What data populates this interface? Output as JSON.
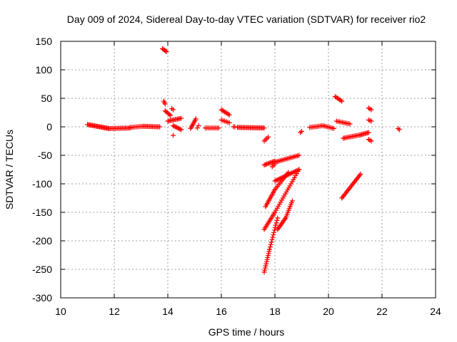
{
  "chart_data": {
    "type": "scatter",
    "title": "Day 009 of 2024, Sidereal Day-to-day VTEC variation (SDTVAR) for receiver rio2",
    "xlabel": "GPS time / hours",
    "ylabel": "SDTVAR / TECUs",
    "xlim": [
      10,
      24
    ],
    "ylim": [
      -300,
      150
    ],
    "x_ticks": [
      10,
      12,
      14,
      16,
      18,
      20,
      22,
      24
    ],
    "y_ticks": [
      150,
      100,
      50,
      0,
      -50,
      -100,
      -150,
      -200,
      -250,
      -300
    ],
    "grid": true,
    "legend": "none",
    "marker_color": "#ff0000",
    "marker": "plus",
    "segments": [
      {
        "from": [
          11.0,
          4
        ],
        "to": [
          11.8,
          -3
        ],
        "n": 22
      },
      {
        "from": [
          11.8,
          -3
        ],
        "to": [
          12.6,
          -2
        ],
        "n": 18
      },
      {
        "from": [
          12.6,
          -1
        ],
        "to": [
          13.1,
          1
        ],
        "n": 10
      },
      {
        "from": [
          13.1,
          1
        ],
        "to": [
          13.7,
          0
        ],
        "n": 14
      },
      {
        "from": [
          13.8,
          137
        ],
        "to": [
          13.95,
          132
        ],
        "n": 5
      },
      {
        "from": [
          13.85,
          45
        ],
        "to": [
          13.9,
          40
        ],
        "n": 3
      },
      {
        "from": [
          13.9,
          28
        ],
        "to": [
          14.1,
          20
        ],
        "n": 6
      },
      {
        "from": [
          14.15,
          32
        ],
        "to": [
          14.2,
          30
        ],
        "n": 2
      },
      {
        "from": [
          14.0,
          10
        ],
        "to": [
          14.5,
          15
        ],
        "n": 12
      },
      {
        "from": [
          14.2,
          2
        ],
        "to": [
          14.5,
          -5
        ],
        "n": 8
      },
      {
        "from": [
          14.2,
          -15
        ],
        "to": [
          14.25,
          -15
        ],
        "n": 1
      },
      {
        "from": [
          14.85,
          -3
        ],
        "to": [
          15.05,
          14
        ],
        "n": 8
      },
      {
        "from": [
          15.1,
          -2
        ],
        "to": [
          15.15,
          2
        ],
        "n": 2
      },
      {
        "from": [
          15.4,
          -2
        ],
        "to": [
          15.9,
          -2
        ],
        "n": 10
      },
      {
        "from": [
          16.0,
          30
        ],
        "to": [
          16.3,
          21
        ],
        "n": 8
      },
      {
        "from": [
          16.0,
          12
        ],
        "to": [
          16.3,
          7
        ],
        "n": 6
      },
      {
        "from": [
          16.45,
          0
        ],
        "to": [
          16.5,
          0
        ],
        "n": 2
      },
      {
        "from": [
          16.6,
          -1
        ],
        "to": [
          17.6,
          -2
        ],
        "n": 24
      },
      {
        "from": [
          17.6,
          -25
        ],
        "to": [
          17.75,
          -18
        ],
        "n": 4
      },
      {
        "from": [
          17.6,
          -67
        ],
        "to": [
          18.0,
          -60
        ],
        "n": 10
      },
      {
        "from": [
          18.0,
          -62
        ],
        "to": [
          18.9,
          -50
        ],
        "n": 18
      },
      {
        "from": [
          17.9,
          -70
        ],
        "to": [
          18.0,
          -65
        ],
        "n": 3
      },
      {
        "from": [
          17.65,
          -140
        ],
        "to": [
          18.0,
          -110
        ],
        "n": 12
      },
      {
        "from": [
          18.0,
          -110
        ],
        "to": [
          18.5,
          -80
        ],
        "n": 12
      },
      {
        "from": [
          17.6,
          -180
        ],
        "to": [
          18.0,
          -150
        ],
        "n": 12
      },
      {
        "from": [
          18.0,
          -150
        ],
        "to": [
          18.9,
          -75
        ],
        "n": 22
      },
      {
        "from": [
          17.6,
          -255
        ],
        "to": [
          17.8,
          -215
        ],
        "n": 12
      },
      {
        "from": [
          17.8,
          -215
        ],
        "to": [
          18.1,
          -160
        ],
        "n": 14
      },
      {
        "from": [
          18.1,
          -180
        ],
        "to": [
          18.4,
          -160
        ],
        "n": 10
      },
      {
        "from": [
          18.4,
          -160
        ],
        "to": [
          18.65,
          -130
        ],
        "n": 10
      },
      {
        "from": [
          18.0,
          -95
        ],
        "to": [
          18.9,
          -75
        ],
        "n": 20
      },
      {
        "from": [
          18.95,
          -10
        ],
        "to": [
          19.0,
          -8
        ],
        "n": 2
      },
      {
        "from": [
          19.3,
          -1
        ],
        "to": [
          19.8,
          2
        ],
        "n": 10
      },
      {
        "from": [
          19.8,
          2
        ],
        "to": [
          20.2,
          -3
        ],
        "n": 8
      },
      {
        "from": [
          20.25,
          53
        ],
        "to": [
          20.5,
          45
        ],
        "n": 7
      },
      {
        "from": [
          20.3,
          10
        ],
        "to": [
          20.8,
          5
        ],
        "n": 10
      },
      {
        "from": [
          20.55,
          -20
        ],
        "to": [
          21.2,
          -14
        ],
        "n": 14
      },
      {
        "from": [
          21.2,
          -14
        ],
        "to": [
          21.5,
          -10
        ],
        "n": 8
      },
      {
        "from": [
          20.5,
          -125
        ],
        "to": [
          21.2,
          -83
        ],
        "n": 20
      },
      {
        "from": [
          21.5,
          33
        ],
        "to": [
          21.6,
          30
        ],
        "n": 3
      },
      {
        "from": [
          21.5,
          12
        ],
        "to": [
          21.6,
          10
        ],
        "n": 3
      },
      {
        "from": [
          21.5,
          -22
        ],
        "to": [
          21.6,
          -25
        ],
        "n": 3
      },
      {
        "from": [
          22.6,
          -3
        ],
        "to": [
          22.65,
          -5
        ],
        "n": 2
      }
    ]
  }
}
